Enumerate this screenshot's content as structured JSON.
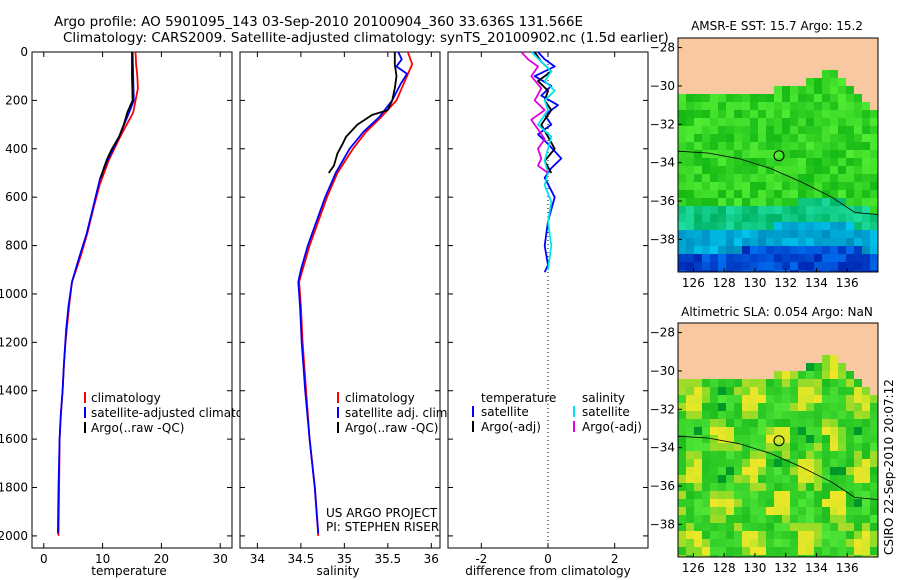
{
  "header": {
    "line1": "Argo profile: AO 5901095_143 03-Sep-2010 20100904_360 33.636S 131.566E",
    "line2": "Climatology: CARS2009. Satellite-adjusted climatology: synTS_20100902.nc (1.5d earlier)"
  },
  "side_label": "CSIRO 22-Sep-2010 20:07:12",
  "colors": {
    "climatology": "#ff0000",
    "satellite": "#0000ff",
    "argo": "#000000",
    "sal_satellite": "#00e5ee",
    "sal_argo": "#e000e0",
    "land": "#f8c9a0"
  },
  "chart_data": [
    {
      "type": "line",
      "name": "temperature-profile",
      "xlabel": "temperature",
      "ylabel": "",
      "xlim": [
        -2,
        32
      ],
      "ylim": [
        2050,
        0
      ],
      "xticks": [
        0,
        10,
        20,
        30
      ],
      "yticks": [
        0,
        200,
        400,
        600,
        800,
        1000,
        1200,
        1400,
        1600,
        1800,
        2000
      ],
      "legend": [
        "climatology",
        "satellite-adjusted climatology",
        "Argo(..raw -QC)"
      ],
      "series": [
        {
          "name": "climatology",
          "color": "#ff0000",
          "points": [
            [
              15.6,
              0
            ],
            [
              15.7,
              50
            ],
            [
              15.9,
              100
            ],
            [
              16.0,
              150
            ],
            [
              15.2,
              250
            ],
            [
              13.0,
              350
            ],
            [
              11.0,
              450
            ],
            [
              9.5,
              550
            ],
            [
              8.4,
              650
            ],
            [
              7.4,
              750
            ],
            [
              6.2,
              850
            ],
            [
              4.8,
              950
            ],
            [
              4.3,
              1050
            ],
            [
              3.7,
              1200
            ],
            [
              3.4,
              1300
            ],
            [
              3.2,
              1400
            ],
            [
              2.9,
              1500
            ],
            [
              2.7,
              1600
            ],
            [
              2.6,
              1800
            ],
            [
              2.5,
              2000
            ]
          ]
        },
        {
          "name": "satellite-adjusted climatology",
          "color": "#0000ff",
          "points": [
            [
              15.1,
              0
            ],
            [
              15.2,
              100
            ],
            [
              15.3,
              200
            ],
            [
              14.5,
              250
            ],
            [
              12.8,
              350
            ],
            [
              10.8,
              450
            ],
            [
              9.6,
              520
            ],
            [
              8.3,
              650
            ],
            [
              7.3,
              750
            ],
            [
              6.0,
              850
            ],
            [
              4.8,
              950
            ],
            [
              4.2,
              1050
            ],
            [
              3.8,
              1150
            ],
            [
              3.4,
              1300
            ],
            [
              3.2,
              1400
            ],
            [
              2.9,
              1500
            ],
            [
              2.7,
              1600
            ],
            [
              2.5,
              1800
            ],
            [
              2.4,
              1990
            ]
          ]
        },
        {
          "name": "Argo(..raw -QC)",
          "color": "#000000",
          "points": [
            [
              15.0,
              0
            ],
            [
              15.0,
              100
            ],
            [
              15.1,
              200
            ],
            [
              14.2,
              250
            ],
            [
              13.6,
              300
            ],
            [
              12.8,
              350
            ],
            [
              11.6,
              400
            ],
            [
              10.8,
              440
            ],
            [
              10.2,
              480
            ],
            [
              9.7,
              520
            ]
          ]
        }
      ]
    },
    {
      "type": "line",
      "name": "salinity-profile",
      "xlabel": "salinity",
      "xlim": [
        33.8,
        36.1
      ],
      "ylim": [
        2050,
        0
      ],
      "xticks": [
        34,
        34.5,
        35,
        35.5,
        36
      ],
      "xticklabels": [
        "34",
        "34.5",
        "35",
        "35.5",
        "36"
      ],
      "legend": [
        "climatology",
        "satellite adj. clim.",
        "Argo(..raw -QC)"
      ],
      "annotation": [
        "US ARGO PROJECT",
        "PI: STEPHEN RISER"
      ],
      "series": [
        {
          "name": "climatology",
          "color": "#ff0000",
          "points": [
            [
              35.73,
              0
            ],
            [
              35.78,
              50
            ],
            [
              35.72,
              100
            ],
            [
              35.66,
              150
            ],
            [
              35.6,
              200
            ],
            [
              35.42,
              270
            ],
            [
              35.25,
              330
            ],
            [
              35.1,
              400
            ],
            [
              34.92,
              500
            ],
            [
              34.8,
              600
            ],
            [
              34.7,
              700
            ],
            [
              34.6,
              800
            ],
            [
              34.52,
              900
            ],
            [
              34.48,
              950
            ],
            [
              34.5,
              1050
            ],
            [
              34.52,
              1200
            ],
            [
              34.56,
              1400
            ],
            [
              34.6,
              1600
            ],
            [
              34.66,
              1800
            ],
            [
              34.7,
              2000
            ]
          ]
        },
        {
          "name": "satellite adj. clim.",
          "color": "#0000ff",
          "points": [
            [
              35.62,
              0
            ],
            [
              35.66,
              30
            ],
            [
              35.6,
              60
            ],
            [
              35.72,
              90
            ],
            [
              35.65,
              130
            ],
            [
              35.55,
              200
            ],
            [
              35.4,
              270
            ],
            [
              35.22,
              330
            ],
            [
              35.06,
              400
            ],
            [
              34.9,
              500
            ],
            [
              34.78,
              600
            ],
            [
              34.68,
              700
            ],
            [
              34.58,
              800
            ],
            [
              34.5,
              900
            ],
            [
              34.47,
              950
            ],
            [
              34.49,
              1050
            ],
            [
              34.51,
              1200
            ],
            [
              34.55,
              1400
            ],
            [
              34.6,
              1600
            ],
            [
              34.66,
              1800
            ],
            [
              34.7,
              1990
            ]
          ]
        },
        {
          "name": "Argo(..raw -QC)",
          "color": "#000000",
          "points": [
            [
              35.58,
              0
            ],
            [
              35.58,
              50
            ],
            [
              35.6,
              100
            ],
            [
              35.58,
              150
            ],
            [
              35.55,
              200
            ],
            [
              35.5,
              240
            ],
            [
              35.32,
              260
            ],
            [
              35.15,
              300
            ],
            [
              35.02,
              350
            ],
            [
              34.98,
              380
            ],
            [
              34.92,
              420
            ],
            [
              34.88,
              470
            ],
            [
              34.82,
              500
            ]
          ]
        }
      ]
    },
    {
      "type": "line",
      "name": "difference-profile",
      "xlabel": "difference from climatology",
      "xlim": [
        -3,
        3
      ],
      "ylim": [
        2050,
        0
      ],
      "xticks": [
        -2,
        0,
        2
      ],
      "legend_groups": [
        {
          "title": "temperature",
          "entries": [
            "satellite",
            "Argo(-adj)"
          ]
        },
        {
          "title": "salinity",
          "entries": [
            "satellite",
            "Argo(-adj)"
          ]
        }
      ],
      "series": [
        {
          "name": "temperature satellite",
          "color": "#0000ff",
          "points": [
            [
              -0.3,
              0
            ],
            [
              -0.1,
              30
            ],
            [
              0.2,
              60
            ],
            [
              -0.4,
              100
            ],
            [
              0.1,
              140
            ],
            [
              -0.2,
              180
            ],
            [
              0.3,
              220
            ],
            [
              -0.1,
              260
            ],
            [
              0.1,
              300
            ],
            [
              -0.3,
              340
            ],
            [
              0.0,
              380
            ],
            [
              0.4,
              440
            ],
            [
              0.1,
              480
            ],
            [
              -0.1,
              520
            ],
            [
              0.2,
              600
            ],
            [
              0.0,
              700
            ],
            [
              -0.1,
              800
            ],
            [
              0.0,
              880
            ],
            [
              -0.1,
              910
            ]
          ]
        },
        {
          "name": "temperature Argo(-adj)",
          "color": "#000000",
          "points": [
            [
              -0.4,
              0
            ],
            [
              -0.2,
              40
            ],
            [
              0.1,
              80
            ],
            [
              -0.3,
              120
            ],
            [
              0.0,
              160
            ],
            [
              -0.1,
              200
            ],
            [
              0.1,
              240
            ],
            [
              -0.2,
              300
            ],
            [
              0.0,
              350
            ],
            [
              0.2,
              400
            ],
            [
              -0.1,
              450
            ],
            [
              0.1,
              500
            ]
          ]
        },
        {
          "name": "salinity satellite",
          "color": "#00e5ee",
          "points": [
            [
              -0.5,
              0
            ],
            [
              -0.2,
              40
            ],
            [
              0.1,
              80
            ],
            [
              -0.1,
              120
            ],
            [
              0.2,
              160
            ],
            [
              -0.1,
              200
            ],
            [
              0.0,
              240
            ],
            [
              -0.3,
              300
            ],
            [
              0.1,
              350
            ],
            [
              0.0,
              400
            ],
            [
              -0.1,
              450
            ],
            [
              0.0,
              500
            ],
            [
              -0.1,
              550
            ],
            [
              0.1,
              620
            ],
            [
              0.0,
              700
            ],
            [
              0.1,
              800
            ],
            [
              0.0,
              900
            ]
          ]
        },
        {
          "name": "salinity Argo(-adj)",
          "color": "#e000e0",
          "points": [
            [
              -0.8,
              0
            ],
            [
              -0.6,
              30
            ],
            [
              -0.3,
              60
            ],
            [
              -0.5,
              100
            ],
            [
              -0.2,
              150
            ],
            [
              -0.4,
              200
            ],
            [
              -0.1,
              240
            ],
            [
              -0.5,
              280
            ],
            [
              -0.3,
              320
            ],
            [
              -0.1,
              360
            ],
            [
              -0.3,
              400
            ],
            [
              -0.2,
              440
            ],
            [
              -0.3,
              470
            ],
            [
              0.0,
              500
            ]
          ]
        }
      ]
    },
    {
      "type": "heatmap",
      "name": "sst-map",
      "title": "AMSR-E SST: 15.7 Argo: 15.2",
      "xlim": [
        125,
        138
      ],
      "ylim": [
        -39.7,
        -27.5
      ],
      "xticks": [
        126,
        128,
        130,
        132,
        134,
        136
      ],
      "yticks": [
        -28,
        -30,
        -32,
        -34,
        -36,
        -38
      ],
      "marker": [
        131.566,
        -33.636
      ]
    },
    {
      "type": "heatmap",
      "name": "sla-map",
      "title": "Altimetric SLA: 0.054 Argo: NaN",
      "xlim": [
        125,
        138
      ],
      "ylim": [
        -39.7,
        -27.5
      ],
      "xticks": [
        126,
        128,
        130,
        132,
        134,
        136
      ],
      "yticks": [
        -28,
        -30,
        -32,
        -34,
        -36,
        -38
      ],
      "marker": [
        131.566,
        -33.636
      ]
    }
  ]
}
